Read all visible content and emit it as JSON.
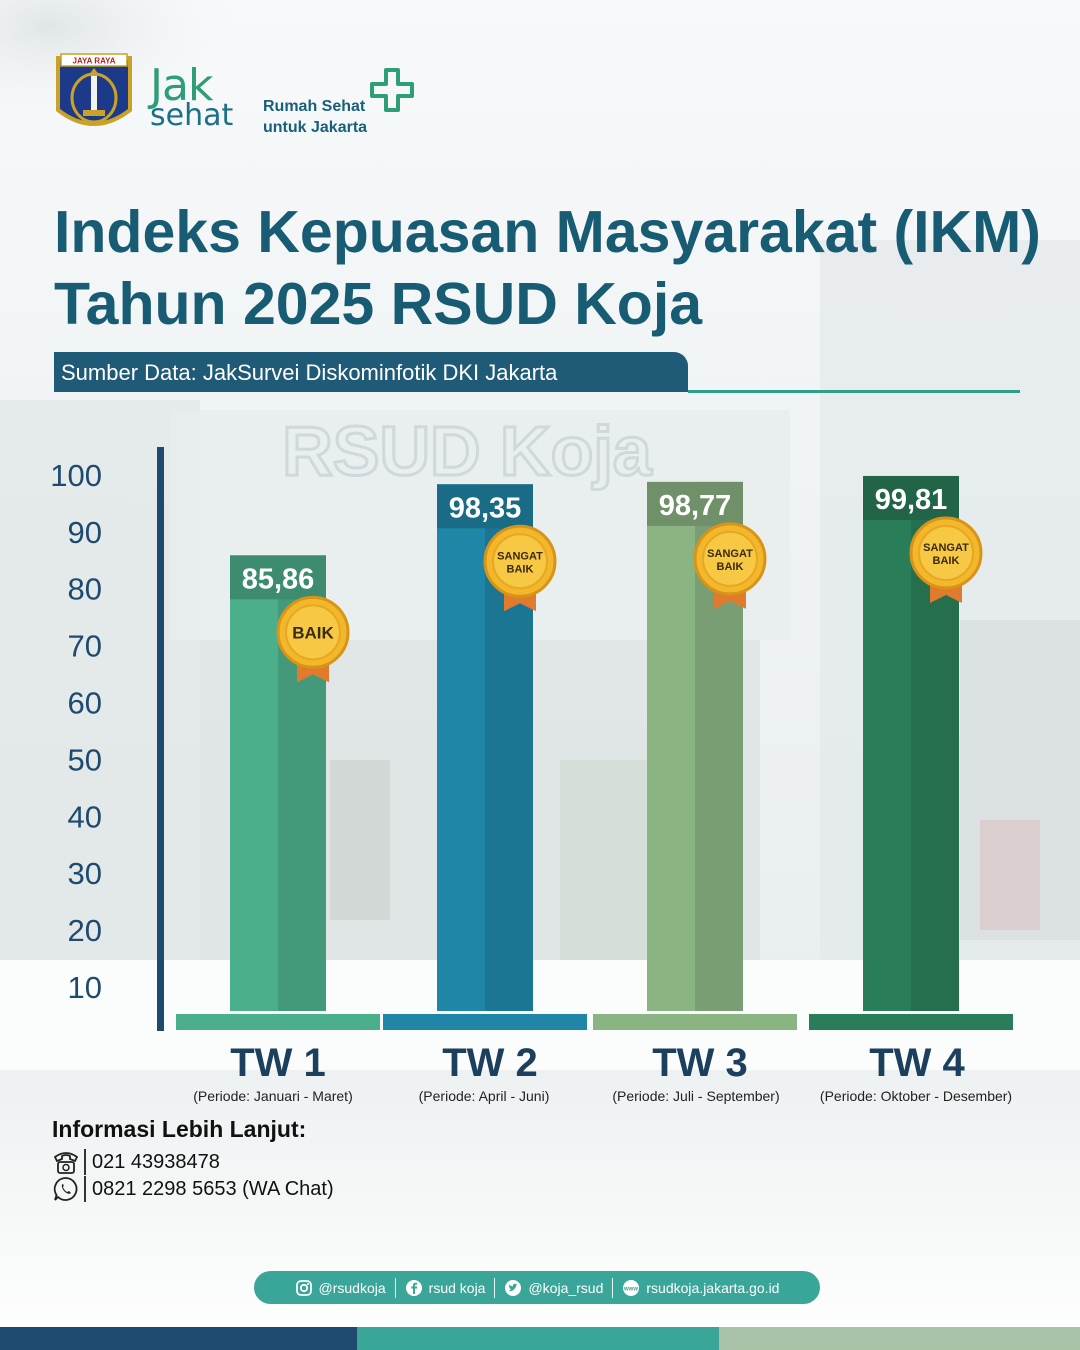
{
  "branding": {
    "seal_text": "JAYA RAYA",
    "logo_top": "Jak",
    "logo_bottom": "sehat",
    "tagline_line1": "Rumah Sehat",
    "tagline_line2": "untuk Jakarta",
    "background_sign": "RSUD Koja"
  },
  "header": {
    "title_line1": "Indeks Kepuasan Masyarakat (IKM)",
    "title_line2": "Tahun 2025 RSUD Koja",
    "source": "Sumber Data: JakSurvei Diskominfotik DKI Jakarta"
  },
  "chart_data": {
    "type": "bar",
    "title": "Indeks Kepuasan Masyarakat (IKM) Tahun 2025 RSUD Koja",
    "categories": [
      "TW 1",
      "TW 2",
      "TW 3",
      "TW 4"
    ],
    "periods": [
      "(Periode: Januari - Maret)",
      "(Periode: April - Juni)",
      "(Periode: Juli - September)",
      "(Periode: Oktober - Desember)"
    ],
    "values": [
      85.86,
      98.35,
      98.77,
      99.81
    ],
    "value_labels": [
      "85,86",
      "98,35",
      "98,77",
      "99,81"
    ],
    "badges": [
      [
        "BAIK"
      ],
      [
        "SANGAT",
        "BAIK"
      ],
      [
        "SANGAT",
        "BAIK"
      ],
      [
        "SANGAT",
        "BAIK"
      ]
    ],
    "y_ticks": [
      10,
      20,
      30,
      40,
      50,
      60,
      70,
      80,
      90,
      100
    ],
    "ylim": [
      0,
      100
    ],
    "colors": [
      "#4caf8b",
      "#1f86a8",
      "#8bb483",
      "#2a7d59"
    ],
    "grid": false,
    "legend": "none"
  },
  "info": {
    "title": "Informasi Lebih Lanjut:",
    "phone": "021 43938478",
    "whatsapp": "0821 2298 5653 (WA Chat)"
  },
  "social": {
    "instagram": "@rsudkoja",
    "facebook": "rsud koja",
    "twitter": "@koja_rsud",
    "website": "rsudkoja.jakarta.go.id"
  },
  "colors": {
    "navy": "#1f4a70",
    "teal": "#3aa69a",
    "sage": "#a9c3a8",
    "title": "#175c72"
  }
}
